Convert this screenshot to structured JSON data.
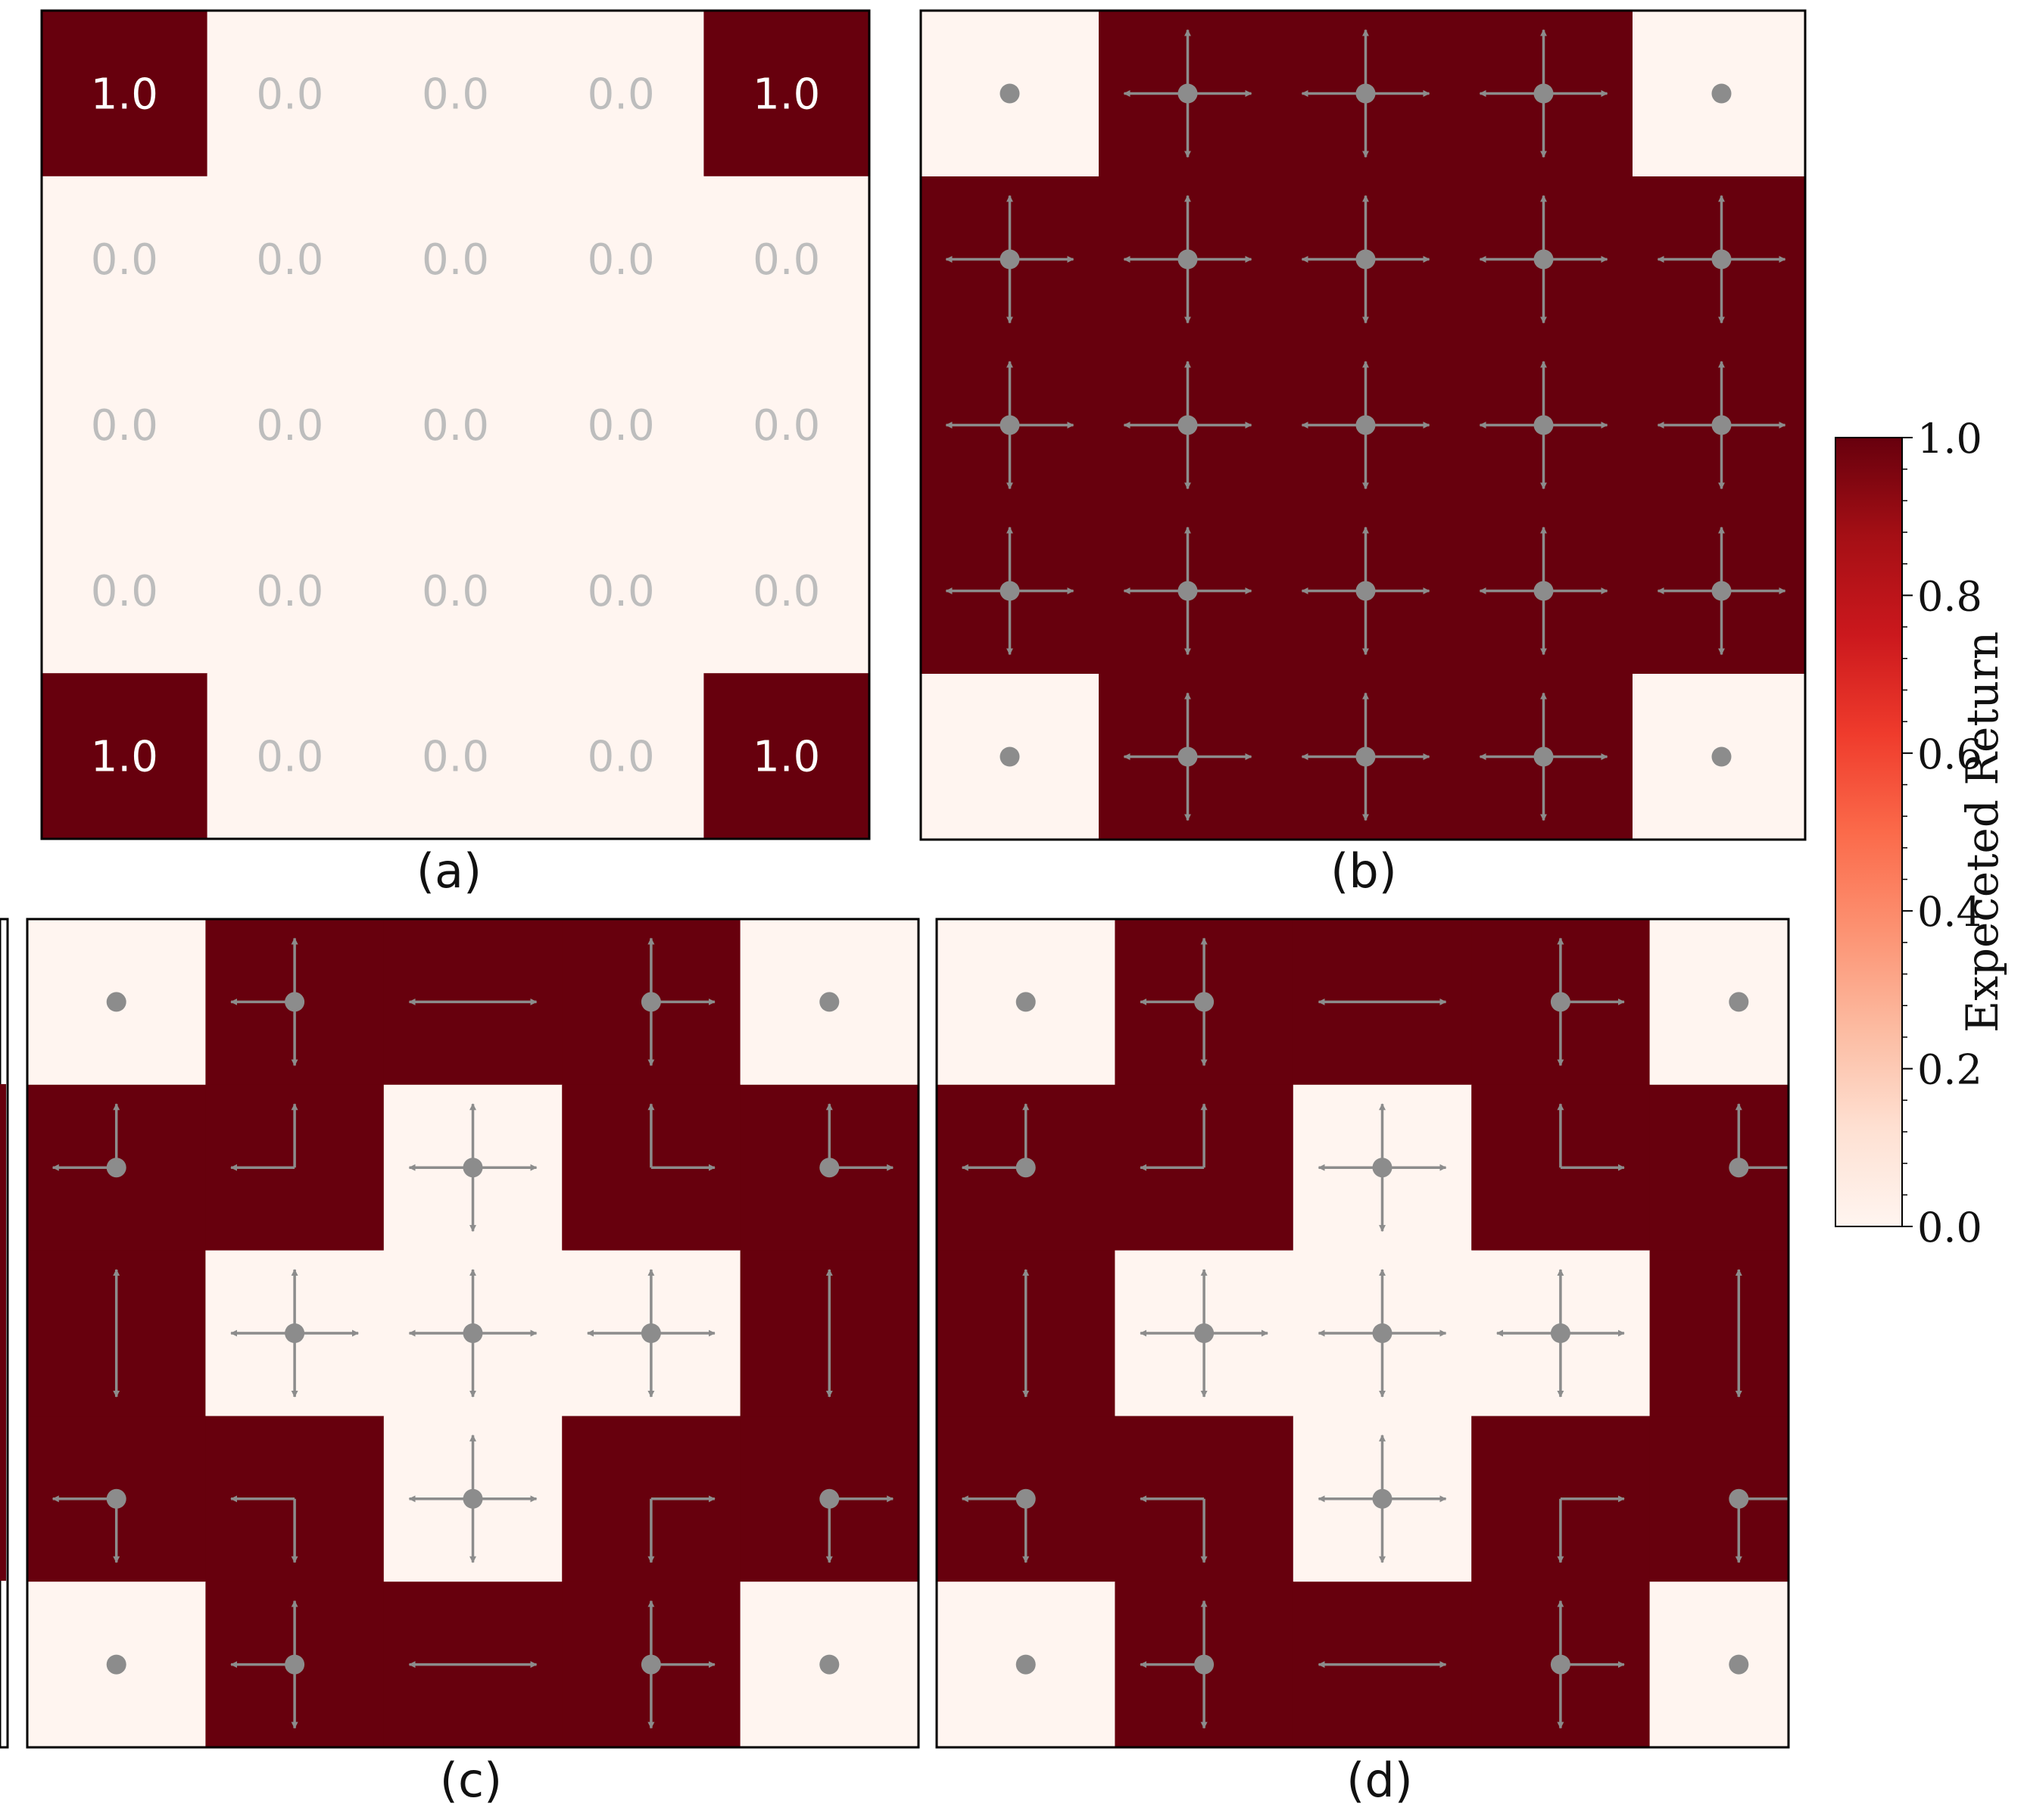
{
  "chart_data": [
    {
      "id": "a",
      "type": "heatmap",
      "caption": "(a)",
      "grid_size": 5,
      "values": [
        [
          1.0,
          0.0,
          0.0,
          0.0,
          1.0
        ],
        [
          0.0,
          0.0,
          0.0,
          0.0,
          0.0
        ],
        [
          0.0,
          0.0,
          0.0,
          0.0,
          0.0
        ],
        [
          0.0,
          0.0,
          0.0,
          0.0,
          0.0
        ],
        [
          1.0,
          0.0,
          0.0,
          0.0,
          1.0
        ]
      ],
      "labels": [
        [
          "1.0",
          "0.0",
          "0.0",
          "0.0",
          "1.0"
        ],
        [
          "0.0",
          "0.0",
          "0.0",
          "0.0",
          "0.0"
        ],
        [
          "0.0",
          "0.0",
          "0.0",
          "0.0",
          "0.0"
        ],
        [
          "0.0",
          "0.0",
          "0.0",
          "0.0",
          "0.0"
        ],
        [
          "1.0",
          "0.0",
          "0.0",
          "0.0",
          "1.0"
        ]
      ]
    },
    {
      "id": "b",
      "type": "heatmap",
      "caption": "(b)",
      "grid_size": 5,
      "values": [
        [
          0,
          1,
          1,
          1,
          0
        ],
        [
          1,
          1,
          1,
          1,
          1
        ],
        [
          1,
          1,
          1,
          1,
          1
        ],
        [
          1,
          1,
          1,
          1,
          1
        ],
        [
          0,
          1,
          1,
          1,
          0
        ]
      ],
      "policy": [
        [
          "o",
          "o,u,d,l,r",
          "o,u,d,l,r",
          "o,u,d,l,r",
          "o"
        ],
        [
          "o,u,d,l,r",
          "o,u,d,l,r",
          "o,u,d,l,r",
          "o,u,d,l,r",
          "o,u,d,l,r"
        ],
        [
          "o,u,d,l,r",
          "o,u,d,l,r",
          "o,u,d,l,r",
          "o,u,d,l,r",
          "o,u,d,l,r"
        ],
        [
          "o,u,d,l,r",
          "o,u,d,l,r",
          "o,u,d,l,r",
          "o,u,d,l,r",
          "o,u,d,l,r"
        ],
        [
          "o",
          "o,u,d,l,r",
          "o,u,d,l,r",
          "o,u,d,l,r",
          "o"
        ]
      ]
    },
    {
      "id": "c",
      "type": "heatmap",
      "caption": "(c)",
      "grid_size": 5,
      "values": [
        [
          0,
          1,
          1,
          1,
          0
        ],
        [
          1,
          1,
          0,
          1,
          1
        ],
        [
          1,
          0,
          0,
          0,
          1
        ],
        [
          1,
          1,
          0,
          1,
          1
        ],
        [
          0,
          1,
          1,
          1,
          0
        ]
      ],
      "policy": [
        [
          "o",
          "o,u,d,l",
          "l,r",
          "o,u,d,r",
          "o"
        ],
        [
          "o,u,l",
          "u,l",
          "o,u,d,l,r",
          "u,r",
          "o,u,r"
        ],
        [
          "u,d",
          "o,u,d,l,r",
          "o,u,d,l,r",
          "o,u,d,l,r",
          "u,d"
        ],
        [
          "o,d,l",
          "d,l",
          "o,u,d,l,r",
          "d,r",
          "o,d,r"
        ],
        [
          "o",
          "o,u,d,l",
          "l,r",
          "o,u,d,r",
          "o"
        ]
      ]
    },
    {
      "id": "d",
      "type": "heatmap",
      "caption": "(d)",
      "grid_size": 5,
      "values": [
        [
          0,
          1,
          1,
          1,
          0
        ],
        [
          1,
          1,
          0,
          1,
          1
        ],
        [
          1,
          0,
          0,
          0,
          1
        ],
        [
          1,
          1,
          0,
          1,
          1
        ],
        [
          0,
          1,
          1,
          1,
          0
        ]
      ],
      "policy": [
        [
          "o",
          "o,u,d,l",
          "l,r",
          "o,u,d,r",
          "o"
        ],
        [
          "o,u,l",
          "u,l",
          "o,u,d,l,r",
          "u,r",
          "o,u,r"
        ],
        [
          "u,d",
          "o,u,d,l,r",
          "o,u,d,l,r",
          "o,u,d,l,r",
          "u,d"
        ],
        [
          "o,d,l",
          "d,l",
          "o,u,d,l,r",
          "d,r",
          "o,d,r"
        ],
        [
          "o",
          "o,u,d,l",
          "l,r",
          "o,u,d,r",
          "o"
        ]
      ]
    }
  ],
  "colorbar": {
    "label": "Expeceted Return",
    "min": 0.0,
    "max": 1.0,
    "ticks": [
      "1.0",
      "0.8",
      "0.6",
      "0.4",
      "0.2",
      "0.0"
    ],
    "tick_values": [
      1.0,
      0.8,
      0.6,
      0.4,
      0.2,
      0.0
    ],
    "cmap": "Reds",
    "color_low": "#fff5f0",
    "color_high": "#67000d"
  },
  "colors": {
    "high": "#67000d",
    "low": "#fff5f0",
    "annotation_text": "#bdbdbd",
    "policy_marks": "#8c8c8c"
  }
}
